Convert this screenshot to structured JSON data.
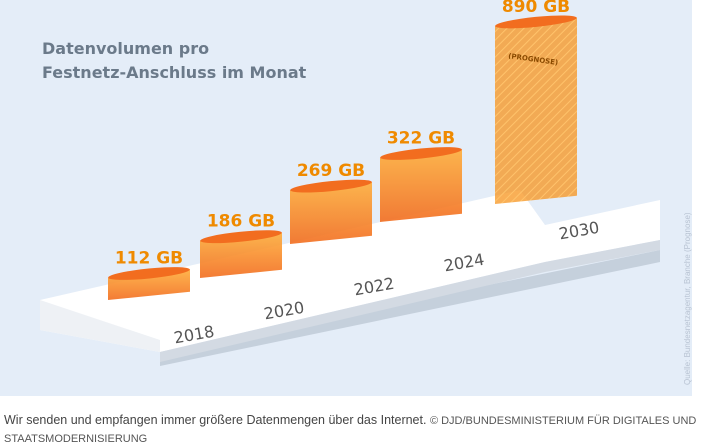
{
  "chart_data": {
    "type": "bar",
    "title_lines": [
      "Datenvolumen pro",
      "Festnetz-Anschluss im Monat"
    ],
    "categories": [
      "2018",
      "2020",
      "2022",
      "2024",
      "2030"
    ],
    "values": [
      112,
      186,
      269,
      322,
      890
    ],
    "value_labels": [
      "112 GB",
      "186 GB",
      "269 GB",
      "322 GB",
      "890 GB"
    ],
    "unit": "GB",
    "annotation": "(PROGNOSE)",
    "source": "Quelle: Bundesnetzagentur, Branche (Prognose)",
    "colors": {
      "bar": "#f7941d",
      "bar_dark": "#e9661c",
      "label": "#ef8a00",
      "platform": "#ffffff",
      "background": "#e4edf8"
    }
  },
  "caption": {
    "text": "Wir senden und empfangen immer größere Datenmengen über das Internet.",
    "credit": "© DJD/BUNDESMINISTERIUM FÜR DIGITALES UND STAATSMODERNISIERUNG"
  }
}
